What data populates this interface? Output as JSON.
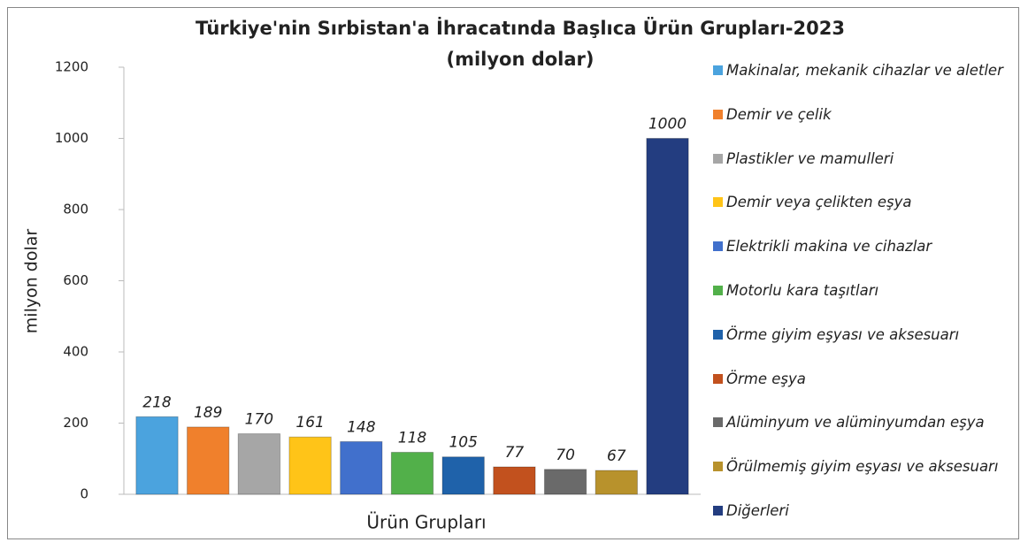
{
  "chart_data": {
    "type": "bar",
    "title": "Türkiye'nin Sırbistan'a İhracatında Başlıca Ürün Grupları-2023",
    "subtitle": "(milyon dolar)",
    "xlabel": "Ürün Grupları",
    "ylabel": "milyon dolar",
    "categories": [
      null
    ],
    "ylim": [
      0,
      1200
    ],
    "yticks": [
      0,
      200,
      400,
      600,
      800,
      1000,
      1200
    ],
    "grid": false,
    "legend": "right",
    "series": [
      {
        "name": "Makinalar, mekanik cihazlar ve aletler",
        "color": "#4ba3de",
        "values": [
          218
        ]
      },
      {
        "name": "Demir ve çelik",
        "color": "#f0802c",
        "values": [
          189
        ]
      },
      {
        "name": "Plastikler ve mamulleri",
        "color": "#a6a6a6",
        "values": [
          170
        ]
      },
      {
        "name": "Demir veya çelikten eşya",
        "color": "#ffc418",
        "values": [
          161
        ]
      },
      {
        "name": "Elektrikli makina ve cihazlar",
        "color": "#4170cc",
        "values": [
          148
        ]
      },
      {
        "name": "Motorlu kara taşıtları",
        "color": "#52b04a",
        "values": [
          118
        ]
      },
      {
        "name": "Örme giyim eşyası ve aksesuarı",
        "color": "#1f62aa",
        "values": [
          105
        ]
      },
      {
        "name": "Örme eşya",
        "color": "#c2511e",
        "values": [
          77
        ]
      },
      {
        "name": "Alüminyum ve alüminyumdan eşya",
        "color": "#6a6a6a",
        "values": [
          70
        ]
      },
      {
        "name": "Örülmemiş giyim eşyası ve aksesuarı",
        "color": "#b8922c",
        "values": [
          67
        ]
      },
      {
        "name": "Diğerleri",
        "color": "#233d80",
        "values": [
          1000
        ]
      }
    ]
  }
}
